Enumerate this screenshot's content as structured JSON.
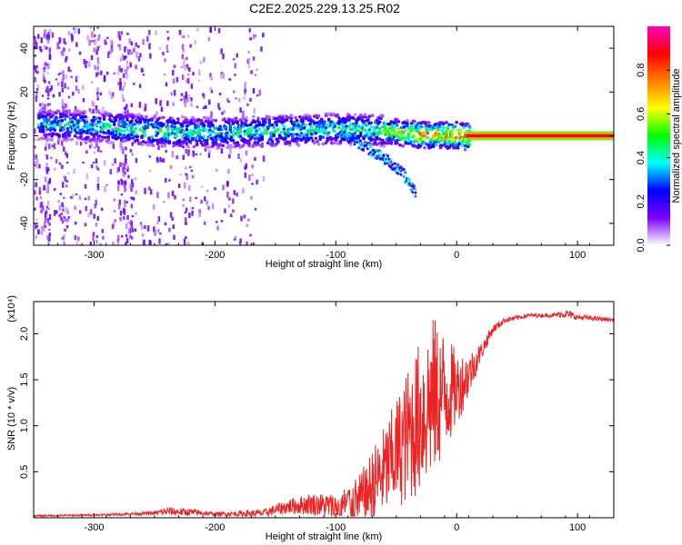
{
  "title": "C2E2.2025.229.13.25.R02",
  "chart_data": [
    {
      "type": "heatmap",
      "xlabel": "Height of straight line (km)",
      "ylabel": "Frequency (Hz)",
      "xlim": [
        -350,
        130
      ],
      "ylim": [
        -50,
        50
      ],
      "x_ticks": [
        -300,
        -200,
        -100,
        0,
        100
      ],
      "y_ticks": [
        -40,
        -20,
        0,
        20,
        40
      ],
      "colorbar": {
        "label": "Normalized spectral amplitude",
        "range": [
          0,
          1
        ],
        "ticks": [
          "0.0",
          "0.2",
          "0.4",
          "0.6",
          "0.8"
        ],
        "colors": [
          "#ffffff",
          "#7b00ff",
          "#0000ff",
          "#00ffff",
          "#00ff00",
          "#ffff00",
          "#ff8000",
          "#ff0000",
          "#ff00c0"
        ]
      },
      "ridge": {
        "x": [
          -345,
          -300,
          -250,
          -200,
          -150,
          -100,
          -60,
          -30,
          0,
          10,
          130
        ],
        "frequency": [
          6,
          5,
          3,
          2,
          3,
          4,
          3,
          1,
          1,
          0,
          0
        ],
        "amplitude": [
          0.4,
          0.45,
          0.5,
          0.45,
          0.5,
          0.45,
          0.55,
          0.8,
          0.85,
          0.9,
          0.95
        ]
      },
      "branch": {
        "x": [
          -100,
          -80,
          -60,
          -45,
          -35
        ],
        "frequency": [
          2,
          -3,
          -10,
          -17,
          -25
        ]
      },
      "background_noise": {
        "x_range": [
          -350,
          -160
        ],
        "frequency_range": [
          -50,
          50
        ]
      }
    },
    {
      "type": "line",
      "xlabel": "Height of straight line (km)",
      "ylabel": "SNR (10 * v/v)",
      "scale_label": "(x10⁴)",
      "xlim": [
        -350,
        130
      ],
      "ylim": [
        0,
        2.35
      ],
      "x_ticks": [
        -300,
        -200,
        -100,
        0,
        100
      ],
      "y_ticks": [
        "0.5",
        "1.0",
        "1.5",
        "2.0"
      ],
      "series": [
        {
          "color": "#ee2222",
          "x": [
            -350,
            -300,
            -250,
            -240,
            -220,
            -200,
            -160,
            -140,
            -120,
            -100,
            -80,
            -70,
            -60,
            -50,
            -40,
            -30,
            -20,
            -10,
            0,
            10,
            20,
            30,
            40,
            60,
            80,
            90,
            100,
            130
          ],
          "y": [
            0.02,
            0.03,
            0.05,
            0.07,
            0.06,
            0.04,
            0.05,
            0.12,
            0.15,
            0.12,
            0.18,
            0.35,
            0.5,
            0.7,
            0.9,
            1.1,
            1.3,
            1.35,
            1.4,
            1.55,
            1.8,
            2.05,
            2.15,
            2.2,
            2.2,
            2.22,
            2.18,
            2.15
          ],
          "noise": [
            0.01,
            0.01,
            0.02,
            0.05,
            0.04,
            0.02,
            0.04,
            0.08,
            0.12,
            0.15,
            0.3,
            0.4,
            0.5,
            0.6,
            0.75,
            0.85,
            0.9,
            0.7,
            0.4,
            0.25,
            0.1,
            0.05,
            0.03,
            0.02,
            0.02,
            0.05,
            0.03,
            0.02
          ]
        }
      ]
    }
  ]
}
